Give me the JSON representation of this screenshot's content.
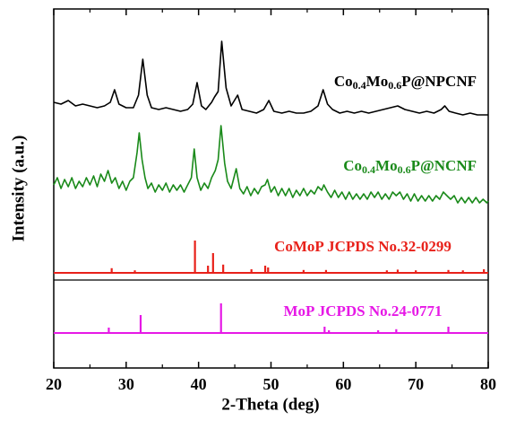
{
  "chart_data": {
    "type": "line",
    "xlabel": "2-Theta (deg)",
    "ylabel": "Intensity (a.u.)",
    "xlim": [
      20,
      80
    ],
    "xticks": [
      20,
      30,
      40,
      50,
      60,
      70,
      80
    ],
    "xminor_ticks": [
      25,
      35,
      45,
      55,
      65,
      75
    ],
    "ylim": [
      0,
      100
    ],
    "series": [
      {
        "name": [
          "Co",
          "0.4",
          "Mo",
          "0.6",
          "P@NPCNF"
        ],
        "type": "line",
        "color": "#000000",
        "x": [
          20,
          21,
          22,
          23,
          24,
          25,
          26,
          27,
          27.8,
          28.4,
          29,
          30,
          31,
          31.7,
          32.3,
          32.9,
          33.5,
          34.5,
          35.5,
          36.5,
          37.5,
          38.5,
          39.2,
          39.8,
          40.4,
          41,
          41.8,
          42.2,
          42.7,
          43.2,
          43.8,
          44.5,
          45.4,
          46,
          47,
          48,
          49,
          49.7,
          50.4,
          51.5,
          52.5,
          53.5,
          54.5,
          55.5,
          56.5,
          57.2,
          57.8,
          58.5,
          59.5,
          60.5,
          61.5,
          62.5,
          63.5,
          64.5,
          65.5,
          66.5,
          67.5,
          68.5,
          69.5,
          70.5,
          71.5,
          72.5,
          73.5,
          74,
          74.6,
          75.5,
          76.5,
          77.5,
          78.5,
          79.5,
          80
        ],
        "values": [
          74,
          73.5,
          74.5,
          73,
          73.5,
          73,
          72.5,
          73,
          74,
          77.5,
          73.5,
          72.5,
          72.5,
          76,
          86,
          76,
          72.5,
          72,
          72.5,
          72,
          71.5,
          72,
          73.5,
          79.5,
          73,
          72,
          74,
          75.5,
          77,
          91,
          78,
          73,
          76,
          72,
          71.5,
          71,
          72,
          74.5,
          71.5,
          71,
          71.5,
          71,
          71,
          71.5,
          73,
          77.5,
          73.5,
          72,
          71,
          71.5,
          71,
          71.5,
          71,
          71.5,
          72,
          72.5,
          73,
          72,
          71.5,
          71,
          71.5,
          71,
          72,
          73,
          71.5,
          71,
          70.5,
          71,
          70.5,
          70.5,
          70.5
        ]
      },
      {
        "name": [
          "Co",
          "0.4",
          "Mo",
          "0.6",
          "P@NCNF"
        ],
        "type": "line",
        "color": "#1a8a1a",
        "x": [
          20,
          20.5,
          21,
          21.5,
          22,
          22.5,
          23,
          23.5,
          24,
          24.5,
          25,
          25.5,
          26,
          26.5,
          27,
          27.5,
          28,
          28.5,
          29,
          29.5,
          30,
          30.5,
          31,
          31.5,
          31.8,
          32.2,
          32.6,
          33,
          33.5,
          34,
          34.5,
          35,
          35.5,
          36,
          36.5,
          37,
          37.5,
          38,
          38.5,
          39,
          39.4,
          39.8,
          40.3,
          40.8,
          41.3,
          41.8,
          42.3,
          42.7,
          43.1,
          43.6,
          44,
          44.5,
          45.2,
          45.7,
          46.2,
          46.7,
          47.2,
          47.7,
          48.2,
          48.7,
          49.2,
          49.5,
          50,
          50.5,
          51,
          51.5,
          52,
          52.5,
          53,
          53.5,
          54,
          54.5,
          55,
          55.5,
          56,
          56.5,
          57,
          57.3,
          57.8,
          58.3,
          58.8,
          59.3,
          59.8,
          60.3,
          60.8,
          61.3,
          61.8,
          62.3,
          62.8,
          63.3,
          63.8,
          64.3,
          64.8,
          65.3,
          65.8,
          66.3,
          66.8,
          67.3,
          67.8,
          68.3,
          68.8,
          69.3,
          69.8,
          70.3,
          70.8,
          71.3,
          71.8,
          72.3,
          72.8,
          73.3,
          73.8,
          74.3,
          74.8,
          75.3,
          75.8,
          76.3,
          76.8,
          77.3,
          77.8,
          78.3,
          78.8,
          79.3,
          79.8,
          80
        ],
        "values": [
          51,
          53,
          50,
          52.5,
          50.5,
          53,
          50,
          52,
          50.5,
          53,
          51,
          53.5,
          50.5,
          54,
          52,
          55,
          51.5,
          53,
          50,
          52,
          49.5,
          52,
          53,
          60,
          65.5,
          58,
          53,
          50,
          51.5,
          49,
          51,
          49.5,
          51.5,
          49,
          51,
          49.5,
          51,
          49,
          51,
          53,
          61,
          53,
          49.5,
          51.5,
          50,
          53,
          55,
          58,
          67.5,
          57,
          52,
          50,
          55.5,
          50,
          48.5,
          50.5,
          48,
          50,
          48.5,
          50.5,
          51,
          52.5,
          49,
          50.5,
          48,
          50,
          48,
          50,
          47.5,
          49.5,
          48,
          50,
          48,
          49.5,
          48.5,
          50.5,
          49.5,
          51,
          49,
          47.5,
          49.5,
          47.5,
          49,
          47,
          49,
          47,
          48.5,
          47,
          48.5,
          47,
          49,
          47.5,
          49,
          47,
          48.5,
          47,
          49,
          48,
          49,
          47,
          48.5,
          46.5,
          48.5,
          46.5,
          48,
          46.5,
          48,
          46.5,
          48,
          47,
          49,
          48,
          47,
          48,
          46,
          47.5,
          46,
          47.5,
          46,
          47.5,
          46,
          47,
          46,
          46.5
        ]
      },
      {
        "name": "CoMoP JCPDS No.32-0299",
        "type": "stick",
        "color": "#e8211a",
        "baseline": 26.5,
        "x": [
          28,
          31.2,
          39.5,
          41.3,
          42,
          43.4,
          47.3,
          49.2,
          49.6,
          54.5,
          57.6,
          66,
          67.5,
          70,
          74.5,
          76.5,
          79.4
        ],
        "values": [
          27.8,
          27.2,
          35.5,
          28.5,
          32,
          28.8,
          27.5,
          28.5,
          28,
          27.3,
          27.3,
          27.2,
          27.4,
          27.2,
          27.3,
          27.2,
          27.5
        ]
      },
      {
        "name": "MoP JCPDS No.24-0771",
        "type": "stick",
        "color": "#e619e6",
        "baseline": 9.75,
        "x": [
          27.6,
          32,
          43.1,
          57.4,
          58,
          64.8,
          67.3,
          74.5
        ],
        "values": [
          11.25,
          14.75,
          18,
          11.5,
          10.5,
          10.5,
          10.8,
          11.5
        ]
      }
    ]
  }
}
